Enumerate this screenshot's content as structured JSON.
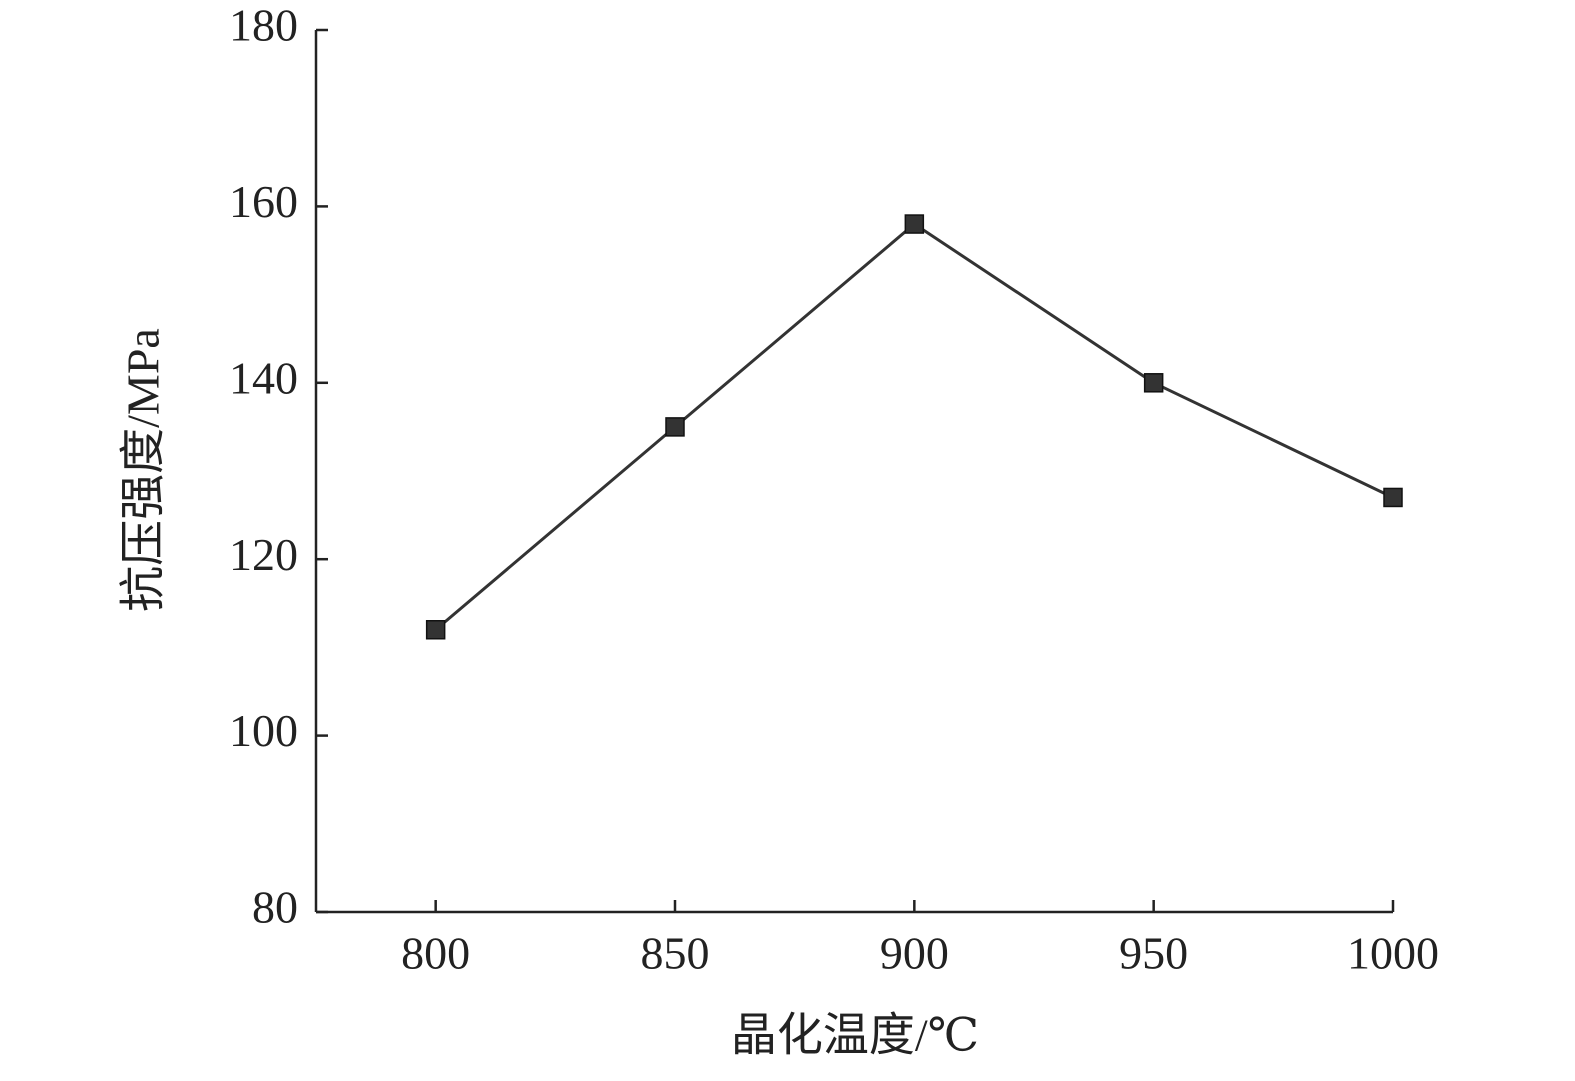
{
  "chart_data": {
    "type": "line",
    "x_label": "晶化温度/℃",
    "y_label": "抗压强度/MPa",
    "x": [
      800,
      850,
      900,
      950,
      1000
    ],
    "series": [
      {
        "color": "#333333",
        "values": [
          112,
          135,
          158,
          140,
          127
        ]
      }
    ],
    "xlim": [
      775,
      1000
    ],
    "xticks": [
      800,
      850,
      900,
      950,
      1000
    ],
    "ylim": [
      80,
      180
    ],
    "yticks": [
      80,
      100,
      120,
      140,
      160,
      180
    ]
  }
}
